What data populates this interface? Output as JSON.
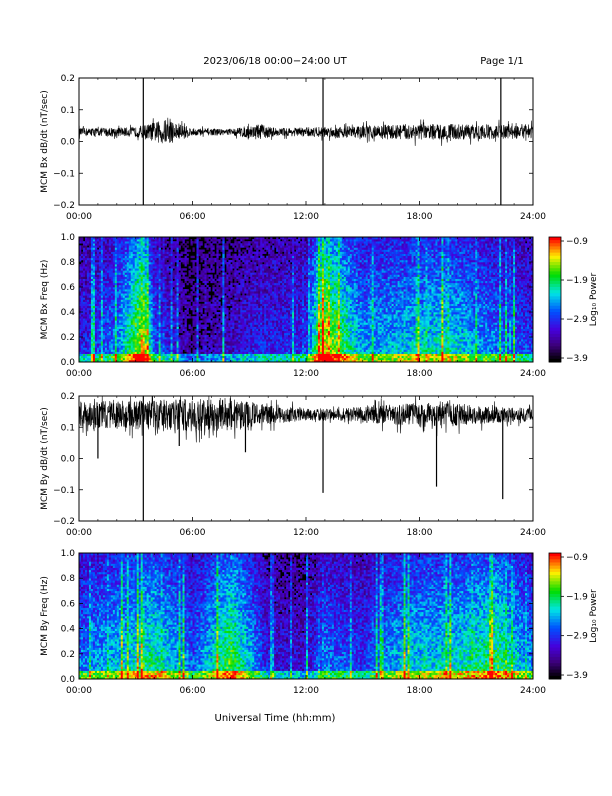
{
  "header": {
    "title": "2023/06/18  00:00−24:00 UT",
    "page": "Page 1/1"
  },
  "footer": {
    "xlabel": "Universal Time (hh:mm)"
  },
  "colors": {
    "trace": "#000000",
    "background": "#ffffff"
  },
  "chart_data": [
    {
      "type": "line",
      "ylabel": "MCM Bx dB/dt (nT/sec)",
      "xlabel": "",
      "xlim": [
        0,
        24
      ],
      "ylim": [
        -0.2,
        0.2
      ],
      "xticks": [
        "00:00",
        "06:00",
        "12:00",
        "18:00",
        "24:00"
      ],
      "yticks": [
        "0.2",
        "0.1",
        "0.0",
        "−0.1",
        "−0.2"
      ],
      "series": [
        {
          "baseline": 0.03,
          "envelope": [
            [
              0,
              0.012
            ],
            [
              3,
              0.015
            ],
            [
              4.6,
              0.04
            ],
            [
              5.2,
              0.03
            ],
            [
              6,
              0.012
            ],
            [
              8,
              0.01
            ],
            [
              9.5,
              0.025
            ],
            [
              10.5,
              0.012
            ],
            [
              12,
              0.015
            ],
            [
              15,
              0.02
            ],
            [
              17,
              0.025
            ],
            [
              20,
              0.025
            ],
            [
              24,
              0.02
            ]
          ],
          "spikes": [
            [
              3.4,
              -0.2,
              0.2
            ],
            [
              12.9,
              -0.2,
              0.2
            ],
            [
              22.3,
              -0.2,
              0.2
            ]
          ]
        }
      ]
    },
    {
      "type": "heatmap",
      "ylabel": "MCM Bx Freq (Hz)",
      "xlim": [
        0,
        24
      ],
      "ylim": [
        0,
        1.0
      ],
      "xticks": [
        "00:00",
        "06:00",
        "12:00",
        "18:00",
        "24:00"
      ],
      "yticks": [
        "1.0",
        "0.8",
        "0.6",
        "0.4",
        "0.2",
        "0.0"
      ],
      "colorbar": {
        "label": "Log₁₀ Power",
        "ticks": [
          "−0.9",
          "−1.9",
          "−2.9",
          "−3.9"
        ],
        "range": [
          -3.9,
          -0.9
        ]
      },
      "activity": [
        [
          0,
          0.3
        ],
        [
          2,
          0.45
        ],
        [
          3.4,
          0.9
        ],
        [
          4,
          0.4
        ],
        [
          6,
          0.15
        ],
        [
          9,
          0.3
        ],
        [
          12,
          0.35
        ],
        [
          12.9,
          0.9
        ],
        [
          15,
          0.5
        ],
        [
          19.5,
          0.6
        ],
        [
          22,
          0.45
        ],
        [
          24,
          0.35
        ]
      ]
    },
    {
      "type": "line",
      "ylabel": "MCM By dB/dt (nT/sec)",
      "xlabel": "",
      "xlim": [
        0,
        24
      ],
      "ylim": [
        -0.2,
        0.2
      ],
      "xticks": [
        "00:00",
        "06:00",
        "12:00",
        "18:00",
        "24:00"
      ],
      "yticks": [
        "0.2",
        "0.1",
        "0.0",
        "−0.1",
        "−0.2"
      ],
      "series": [
        {
          "baseline": 0.14,
          "envelope": [
            [
              0,
              0.04
            ],
            [
              2,
              0.045
            ],
            [
              5,
              0.05
            ],
            [
              8,
              0.055
            ],
            [
              10,
              0.03
            ],
            [
              12,
              0.02
            ],
            [
              14,
              0.02
            ],
            [
              17,
              0.035
            ],
            [
              19,
              0.04
            ],
            [
              21,
              0.03
            ],
            [
              24,
              0.02
            ]
          ],
          "spikes": [
            [
              3.4,
              -0.2,
              0.2
            ],
            [
              1,
              0.0,
              0.14
            ],
            [
              12.9,
              -0.11,
              0.14
            ],
            [
              18.9,
              -0.09,
              0.14
            ],
            [
              22.4,
              -0.13,
              0.14
            ],
            [
              8.8,
              0.02,
              0.14
            ],
            [
              5.3,
              0.04,
              0.14
            ]
          ]
        }
      ]
    },
    {
      "type": "heatmap",
      "ylabel": "MCM By Freq (Hz)",
      "xlim": [
        0,
        24
      ],
      "ylim": [
        0,
        1.0
      ],
      "xticks": [
        "00:00",
        "06:00",
        "12:00",
        "18:00",
        "24:00"
      ],
      "yticks": [
        "1.0",
        "0.8",
        "0.6",
        "0.4",
        "0.2",
        "0.0"
      ],
      "colorbar": {
        "label": "Log₁₀ Power",
        "ticks": [
          "−0.9",
          "−1.9",
          "−2.9",
          "−3.9"
        ],
        "range": [
          -3.9,
          -0.9
        ]
      },
      "activity": [
        [
          0,
          0.45
        ],
        [
          2,
          0.55
        ],
        [
          4,
          0.65
        ],
        [
          5,
          0.55
        ],
        [
          6,
          0.4
        ],
        [
          8,
          0.75
        ],
        [
          9,
          0.55
        ],
        [
          10,
          0.3
        ],
        [
          12,
          0.25
        ],
        [
          13,
          0.45
        ],
        [
          15,
          0.35
        ],
        [
          17,
          0.55
        ],
        [
          20,
          0.6
        ],
        [
          22.2,
          0.7
        ],
        [
          24,
          0.45
        ]
      ]
    }
  ]
}
